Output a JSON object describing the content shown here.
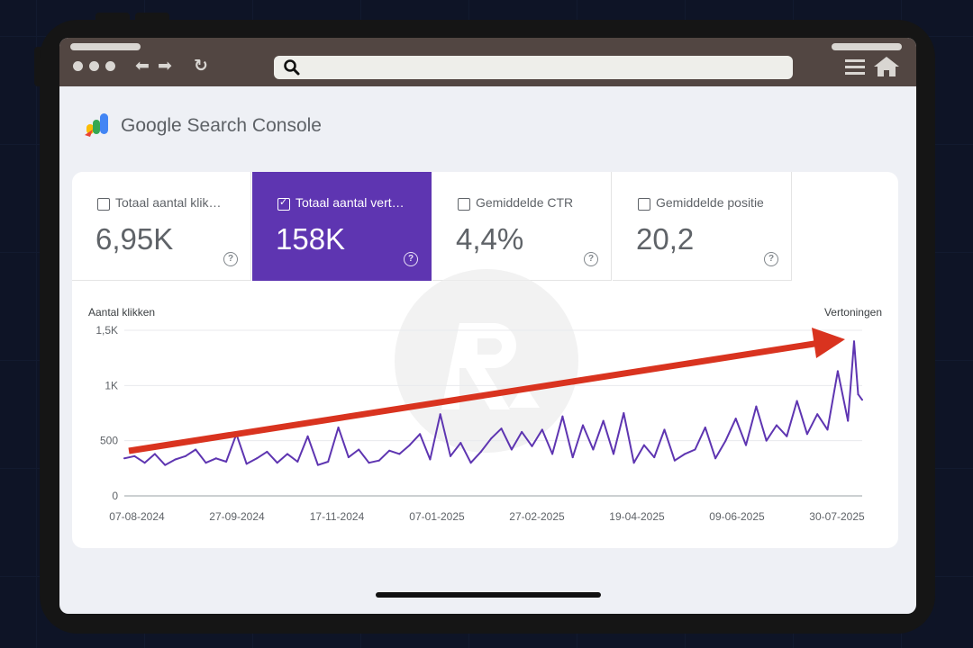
{
  "app": {
    "brand_strong": "Google",
    "brand_rest": " Search Console"
  },
  "browser": {
    "url": ""
  },
  "metrics": [
    {
      "label": "Totaal aantal klik…",
      "value": "6,95K",
      "selected": false
    },
    {
      "label": "Totaal aantal vert…",
      "value": "158K",
      "selected": true
    },
    {
      "label": "Gemiddelde CTR",
      "value": "4,4%",
      "selected": false
    },
    {
      "label": "Gemiddelde positie",
      "value": "20,2",
      "selected": false
    }
  ],
  "chart_data": {
    "type": "line",
    "ylabel_left": "Aantal klikken",
    "ylabel_right": "Vertoningen",
    "y_ticks": [
      "0",
      "500",
      "1K",
      "1,5K"
    ],
    "ylim": [
      0,
      1500
    ],
    "x_tick_labels": [
      "07-08-2024",
      "27-09-2024",
      "17-11-2024",
      "07-01-2025",
      "27-02-2025",
      "19-04-2025",
      "09-06-2025",
      "30-07-2025"
    ],
    "x_start": "2024-08-07",
    "x_end": "2025-08-04",
    "series": [
      {
        "color": "#5e35b1",
        "x": [
          "2024-08-07",
          "2024-08-12",
          "2024-08-17",
          "2024-08-22",
          "2024-08-27",
          "2024-09-01",
          "2024-09-06",
          "2024-09-11",
          "2024-09-16",
          "2024-09-21",
          "2024-09-26",
          "2024-10-01",
          "2024-10-06",
          "2024-10-11",
          "2024-10-16",
          "2024-10-21",
          "2024-10-26",
          "2024-10-31",
          "2024-11-05",
          "2024-11-10",
          "2024-11-15",
          "2024-11-20",
          "2024-11-25",
          "2024-11-30",
          "2024-12-05",
          "2024-12-10",
          "2024-12-15",
          "2024-12-20",
          "2024-12-25",
          "2024-12-30",
          "2025-01-04",
          "2025-01-09",
          "2025-01-14",
          "2025-01-19",
          "2025-01-24",
          "2025-01-29",
          "2025-02-03",
          "2025-02-08",
          "2025-02-13",
          "2025-02-18",
          "2025-02-23",
          "2025-02-28",
          "2025-03-05",
          "2025-03-10",
          "2025-03-15",
          "2025-03-20",
          "2025-03-25",
          "2025-03-30",
          "2025-04-04",
          "2025-04-09",
          "2025-04-14",
          "2025-04-19",
          "2025-04-24",
          "2025-04-29",
          "2025-05-04",
          "2025-05-09",
          "2025-05-14",
          "2025-05-19",
          "2025-05-24",
          "2025-05-29",
          "2025-06-03",
          "2025-06-08",
          "2025-06-13",
          "2025-06-18",
          "2025-06-23",
          "2025-06-28",
          "2025-07-03",
          "2025-07-08",
          "2025-07-13",
          "2025-07-18",
          "2025-07-23",
          "2025-07-28",
          "2025-07-31",
          "2025-08-02",
          "2025-08-04"
        ],
        "y": [
          340,
          360,
          300,
          380,
          280,
          330,
          360,
          420,
          300,
          340,
          310,
          560,
          290,
          340,
          400,
          300,
          380,
          310,
          540,
          280,
          310,
          620,
          350,
          420,
          300,
          320,
          410,
          380,
          460,
          560,
          330,
          740,
          360,
          480,
          300,
          400,
          520,
          610,
          420,
          580,
          450,
          600,
          380,
          720,
          350,
          640,
          420,
          680,
          380,
          750,
          300,
          460,
          350,
          600,
          320,
          380,
          420,
          620,
          340,
          500,
          700,
          460,
          810,
          500,
          640,
          540,
          860,
          560,
          740,
          600,
          1130,
          680,
          1400,
          920,
          870
        ]
      }
    ],
    "grid": true,
    "annotation": "red trend arrow rising from lower-left to the upper-right peak"
  }
}
